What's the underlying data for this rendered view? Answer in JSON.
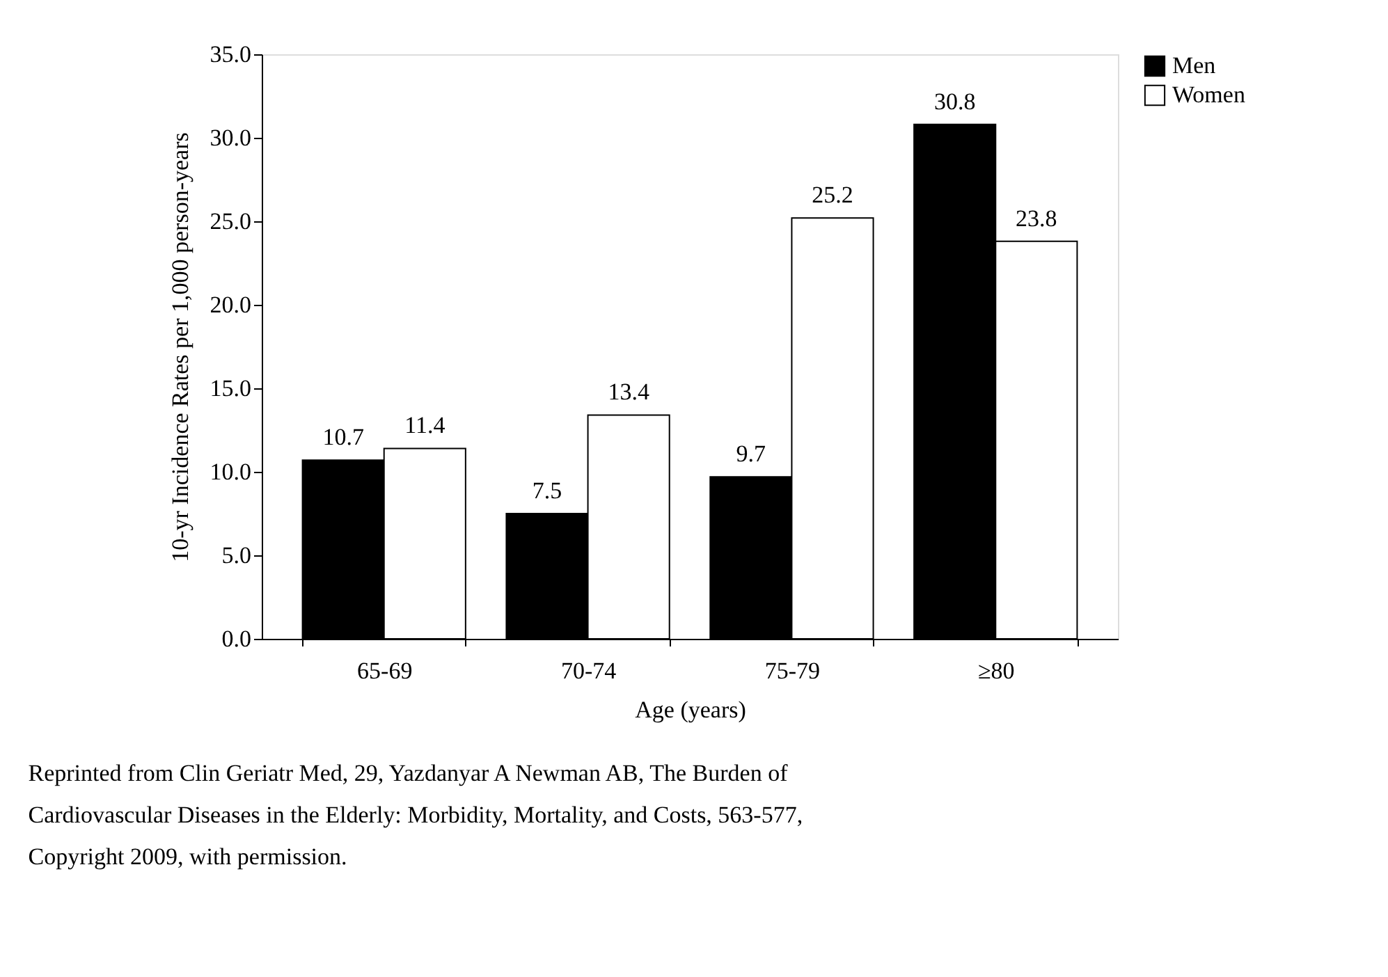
{
  "chart_data": {
    "type": "bar",
    "categories": [
      "65-69",
      "70-74",
      "75-79",
      "≥80"
    ],
    "series": [
      {
        "name": "Men",
        "color": "#000000",
        "values": [
          10.7,
          7.5,
          9.7,
          30.8
        ]
      },
      {
        "name": "Women",
        "color": "#ffffff",
        "values": [
          11.4,
          13.4,
          25.2,
          23.8
        ]
      }
    ],
    "xlabel": "Age (years)",
    "ylabel": "10-yr Incidence Rates per 1,000 person-years",
    "ylim": [
      0,
      35
    ],
    "yticks": [
      {
        "value": 0,
        "label": "0.0"
      },
      {
        "value": 5,
        "label": "5.0"
      },
      {
        "value": 10,
        "label": "10.0"
      },
      {
        "value": 15,
        "label": "15.0"
      },
      {
        "value": 20,
        "label": "20.0"
      },
      {
        "value": 25,
        "label": "25.0"
      },
      {
        "value": 30,
        "label": "30.0"
      },
      {
        "value": 35,
        "label": "35.0"
      }
    ],
    "data_labels": true,
    "legend": "right",
    "grid": false,
    "annotations": [
      "Reprinted from Clin Geriatr Med, 29, Yazdanyar A Newman AB, The Burden of",
      "Cardiovascular Diseases in the Elderly: Morbidity, Mortality, and Costs, 563-577,",
      "Copyright 2009, with permission."
    ]
  }
}
